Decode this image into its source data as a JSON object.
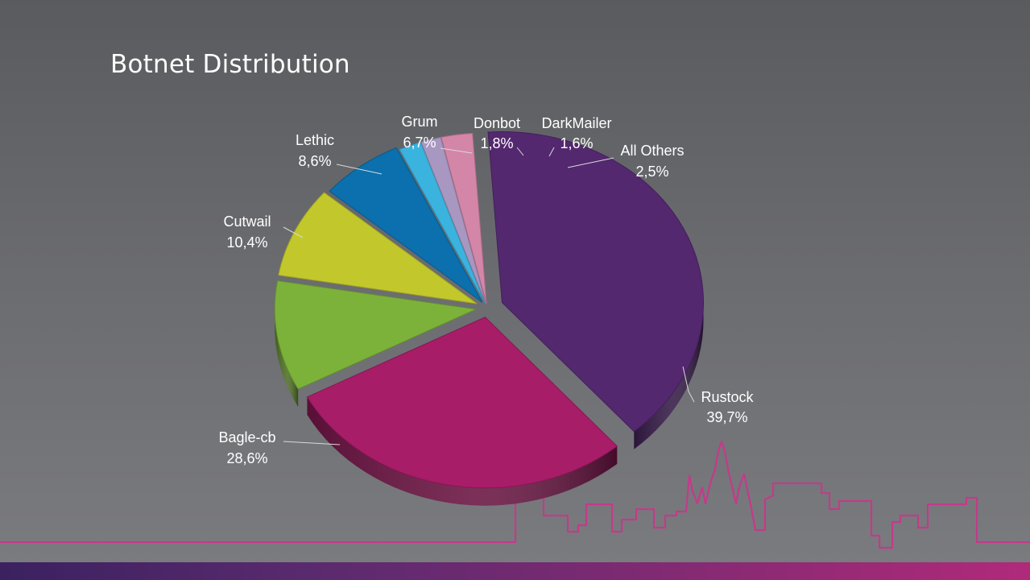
{
  "slide": {
    "title": "Botnet Distribution"
  },
  "chart_data": {
    "type": "pie",
    "title": "Botnet Distribution",
    "slices": [
      {
        "name": "Rustock",
        "label": "39,7%",
        "value": 39.7,
        "color": "#53286f"
      },
      {
        "name": "Bagle-cb",
        "label": "28,6%",
        "value": 28.6,
        "color": "#a81d68"
      },
      {
        "name": "Cutwail",
        "label": "10,4%",
        "value": 10.4,
        "color": "#7cb23a"
      },
      {
        "name": "Lethic",
        "label": "8,6%",
        "value": 8.6,
        "color": "#c2c82b"
      },
      {
        "name": "Grum",
        "label": "6,7%",
        "value": 6.7,
        "color": "#0b70ad"
      },
      {
        "name": "Donbot",
        "label": "1,8%",
        "value": 1.8,
        "color": "#3ab3df"
      },
      {
        "name": "DarkMailer",
        "label": "1,6%",
        "value": 1.6,
        "color": "#a897c0"
      },
      {
        "name": "All Others",
        "label": "2,5%",
        "value": 2.5,
        "color": "#d486a8"
      }
    ]
  },
  "colors": {
    "skyline": "#c43a8a"
  }
}
